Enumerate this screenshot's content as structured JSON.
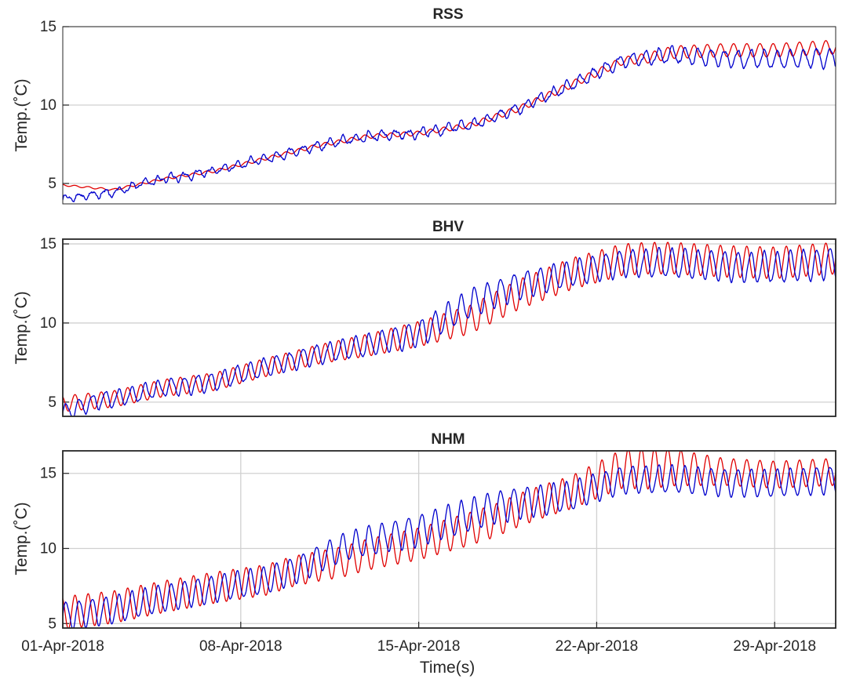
{
  "chart_data": {
    "type": "line",
    "xlabel": "Time(s)",
    "x_ticks": [
      "01-Apr-2018",
      "08-Apr-2018",
      "15-Apr-2018",
      "22-Apr-2018",
      "29-Apr-2018"
    ],
    "x_range_days": [
      0,
      30.4
    ],
    "colors": {
      "series_a": "#0000cd",
      "series_b": "#e00000",
      "grid": "#d0d0d0",
      "axes": "#262626"
    },
    "panels": [
      {
        "title": "RSS",
        "ylabel": "Temp.(˚C)",
        "ylim": [
          3.7,
          15
        ],
        "y_ticks": [
          5,
          10,
          15
        ],
        "x_grid": false,
        "trend": [
          [
            0,
            4.9
          ],
          [
            2,
            4.6
          ],
          [
            4,
            5.3
          ],
          [
            6,
            5.8
          ],
          [
            8,
            6.6
          ],
          [
            10,
            7.4
          ],
          [
            12,
            8.0
          ],
          [
            14,
            8.2
          ],
          [
            16,
            8.7
          ],
          [
            18,
            9.8
          ],
          [
            20,
            11.3
          ],
          [
            22,
            12.8
          ],
          [
            24,
            13.2
          ],
          [
            26,
            13.0
          ],
          [
            28,
            12.9
          ],
          [
            30.4,
            13.0
          ]
        ],
        "blue": {
          "bias": [
            [
              0,
              -0.9
            ],
            [
              1.5,
              -0.3
            ],
            [
              3,
              0
            ],
            [
              30.4,
              0
            ]
          ],
          "amp": [
            [
              0,
              0.2
            ],
            [
              18,
              0.3
            ],
            [
              22,
              0.4
            ],
            [
              24,
              0.5
            ],
            [
              30.4,
              0.6
            ]
          ],
          "noise": 0.18
        },
        "red": {
          "bias": [
            [
              0,
              0
            ],
            [
              23,
              0
            ],
            [
              26,
              0.5
            ],
            [
              30.4,
              0.7
            ]
          ],
          "amp": [
            [
              0,
              0.05
            ],
            [
              15,
              0.15
            ],
            [
              22,
              0.25
            ],
            [
              24,
              0.4
            ],
            [
              30.4,
              0.45
            ]
          ],
          "noise": 0.0
        }
      },
      {
        "title": "BHV",
        "ylabel": "Temp.(˚C)",
        "ylim": [
          4.1,
          15.3
        ],
        "y_ticks": [
          5,
          10,
          15
        ],
        "x_grid": false,
        "trend": [
          [
            0,
            4.9
          ],
          [
            2,
            5.2
          ],
          [
            4,
            5.9
          ],
          [
            6,
            6.3
          ],
          [
            8,
            7.2
          ],
          [
            10,
            8.0
          ],
          [
            12,
            8.6
          ],
          [
            14,
            9.3
          ],
          [
            16,
            10.5
          ],
          [
            18,
            12.0
          ],
          [
            20,
            13.1
          ],
          [
            22,
            13.8
          ],
          [
            24,
            13.8
          ],
          [
            26,
            13.6
          ],
          [
            28,
            13.5
          ],
          [
            30.4,
            13.8
          ]
        ],
        "blue": {
          "bias": [
            [
              0,
              -0.6
            ],
            [
              1.5,
              0
            ],
            [
              14,
              0
            ],
            [
              16,
              0.7
            ],
            [
              18,
              0.4
            ],
            [
              20,
              0
            ],
            [
              30.4,
              0
            ]
          ],
          "amp": [
            [
              0,
              0.5
            ],
            [
              10,
              0.6
            ],
            [
              16,
              0.9
            ],
            [
              20,
              0.8
            ],
            [
              24,
              0.9
            ],
            [
              30.4,
              1.0
            ]
          ],
          "noise": 0.12
        },
        "red": {
          "bias": [
            [
              0,
              0
            ],
            [
              14,
              0
            ],
            [
              16,
              -0.3
            ],
            [
              20,
              0
            ],
            [
              23,
              0.3
            ],
            [
              30.4,
              0.3
            ]
          ],
          "amp": [
            [
              0,
              0.5
            ],
            [
              10,
              0.6
            ],
            [
              16,
              0.9
            ],
            [
              20,
              1.0
            ],
            [
              23,
              1.0
            ],
            [
              30.4,
              1.0
            ]
          ],
          "noise": 0.0
        }
      },
      {
        "title": "NHM",
        "ylabel": "Temp.(˚C)",
        "ylim": [
          4.7,
          16.5
        ],
        "y_ticks": [
          5,
          10,
          15
        ],
        "x_grid": true,
        "trend": [
          [
            0,
            5.7
          ],
          [
            2,
            6.1
          ],
          [
            4,
            6.8
          ],
          [
            6,
            7.4
          ],
          [
            8,
            7.9
          ],
          [
            10,
            9.0
          ],
          [
            12,
            10.0
          ],
          [
            14,
            10.7
          ],
          [
            16,
            11.7
          ],
          [
            18,
            12.8
          ],
          [
            20,
            13.6
          ],
          [
            22,
            14.9
          ],
          [
            24,
            14.9
          ],
          [
            26,
            14.7
          ],
          [
            28,
            14.6
          ],
          [
            30.4,
            14.9
          ]
        ],
        "blue": {
          "bias": [
            [
              0,
              -0.2
            ],
            [
              9,
              0
            ],
            [
              11,
              0.5
            ],
            [
              17,
              0.5
            ],
            [
              19,
              0
            ],
            [
              22,
              -0.3
            ],
            [
              30.4,
              -0.3
            ]
          ],
          "amp": [
            [
              0,
              0.9
            ],
            [
              10,
              0.9
            ],
            [
              16,
              1.1
            ],
            [
              22,
              0.9
            ],
            [
              30.4,
              0.9
            ]
          ],
          "noise": 0.08
        },
        "red": {
          "bias": [
            [
              0,
              0
            ],
            [
              9,
              0
            ],
            [
              11,
              -0.4
            ],
            [
              17,
              -0.4
            ],
            [
              19,
              0
            ],
            [
              22,
              0.4
            ],
            [
              24,
              0.5
            ],
            [
              30.4,
              0.2
            ]
          ],
          "amp": [
            [
              0,
              1.1
            ],
            [
              10,
              1.0
            ],
            [
              16,
              1.1
            ],
            [
              20,
              1.1
            ],
            [
              22,
              1.3
            ],
            [
              23,
              1.4
            ],
            [
              26,
              0.9
            ],
            [
              30.4,
              0.9
            ]
          ],
          "noise": 0.0
        }
      }
    ]
  }
}
